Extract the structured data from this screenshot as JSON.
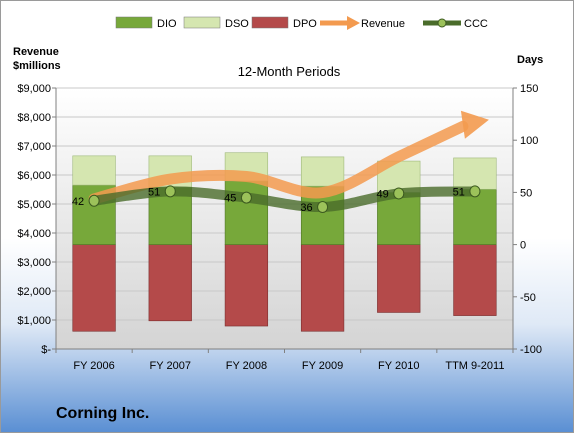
{
  "company": "Corning Inc.",
  "chart_data": {
    "type": "bar",
    "stacked": true,
    "title": "12-Month Periods",
    "ylabel_left": [
      "Revenue",
      "$millions"
    ],
    "ylabel_right": "Days",
    "categories": [
      "FY 2006",
      "FY 2007",
      "FY 2008",
      "FY 2009",
      "FY 2010",
      "TTM 9-2011"
    ],
    "left_axis": {
      "min": 0,
      "max": 9000,
      "step": 1000,
      "tick_labels": [
        "$-",
        "$1,000",
        "$2,000",
        "$3,000",
        "$4,000",
        "$5,000",
        "$6,000",
        "$7,000",
        "$8,000",
        "$9,000"
      ]
    },
    "right_axis": {
      "min": -100,
      "max": 150,
      "step": 50,
      "tick_labels": [
        "-100",
        "-50",
        "0",
        "50",
        "100",
        "150"
      ]
    },
    "series": [
      {
        "name": "DIO",
        "kind": "bar",
        "axis": "right",
        "color": "#77a83a",
        "values": [
          57,
          55,
          61,
          56,
          50,
          53
        ]
      },
      {
        "name": "DSO",
        "kind": "bar",
        "axis": "right",
        "color": "#d5e6b0",
        "values": [
          28,
          30,
          27,
          28,
          30,
          30
        ]
      },
      {
        "name": "DPO",
        "kind": "bar",
        "axis": "right",
        "color": "#b44a4a",
        "values": [
          -83,
          -73,
          -78,
          -83,
          -65,
          -68
        ]
      },
      {
        "name": "Revenue",
        "kind": "line",
        "axis": "left",
        "color": "#f39a4f",
        "values": [
          5174,
          5860,
          5948,
          5395,
          6632,
          7800
        ]
      },
      {
        "name": "CCC",
        "kind": "line",
        "axis": "right",
        "color": "#4a6c2b",
        "values": [
          42,
          51,
          45,
          36,
          49,
          51
        ]
      }
    ],
    "data_labels": [
      "42",
      "51",
      "45",
      "36",
      "49",
      "51"
    ],
    "legend": "top",
    "grid": true
  }
}
